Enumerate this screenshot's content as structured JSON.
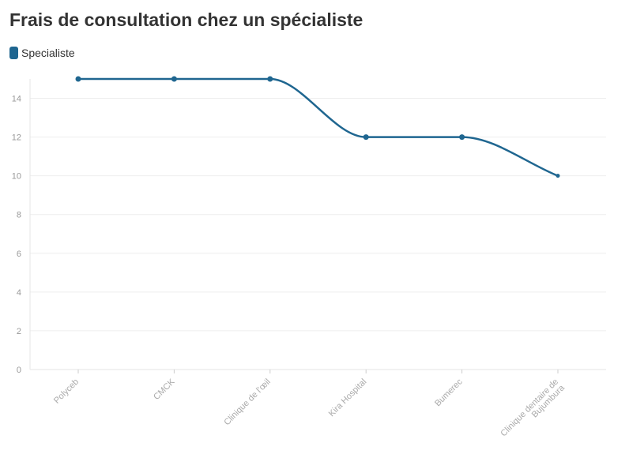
{
  "chart_data": {
    "type": "line",
    "title": "Frais de consultation chez un spécialiste",
    "xlabel": "",
    "ylabel": "",
    "categories": [
      "Polyceb",
      "CMCK",
      "Clinique de l'œil",
      "Kira Hospital",
      "Bumerec",
      "Clinique dentaire de Bujumbura"
    ],
    "category_lines": [
      [
        "Polyceb"
      ],
      [
        "CMCK"
      ],
      [
        "Clinique de l'œil"
      ],
      [
        "Kira Hospital"
      ],
      [
        "Bumerec"
      ],
      [
        "Clinique dentaire de",
        "Bujumbura"
      ]
    ],
    "series": [
      {
        "name": "Specialiste",
        "values": [
          15,
          15,
          15,
          12,
          12,
          10
        ],
        "color": "#1f6690"
      }
    ],
    "ylim": [
      0,
      15
    ],
    "yticks": [
      0,
      2,
      4,
      6,
      8,
      10,
      12,
      14
    ],
    "grid": true,
    "legend_position": "top-left",
    "curve": "smooth"
  }
}
